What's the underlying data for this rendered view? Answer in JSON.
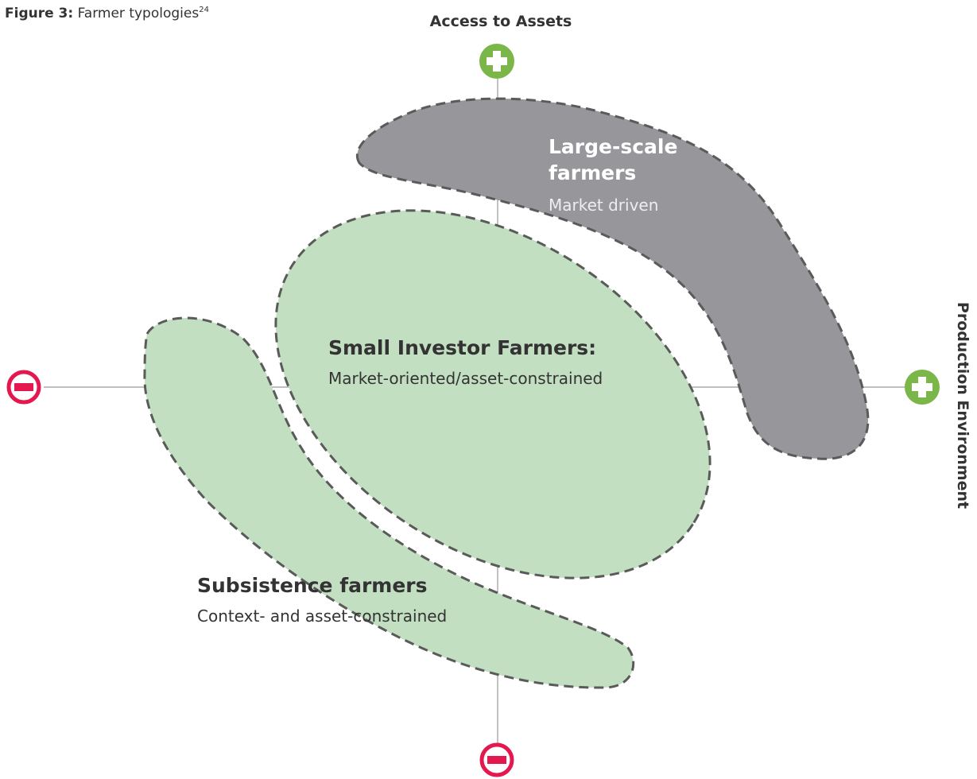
{
  "figure": {
    "label": "Figure 3:",
    "title": "Farmer typologies",
    "note": "24"
  },
  "axes": {
    "vertical": "Access to Assets",
    "horizontal": "Production Environment"
  },
  "groups": [
    {
      "title": [
        "Large-scale",
        "farmers"
      ],
      "subtitle": "Market driven"
    },
    {
      "title": [
        "Small Investor Farmers:"
      ],
      "subtitle": "Market-oriented/asset-constrained"
    },
    {
      "title": [
        "Subsistence farmers"
      ],
      "subtitle": "Context- and asset-constrained"
    }
  ]
}
